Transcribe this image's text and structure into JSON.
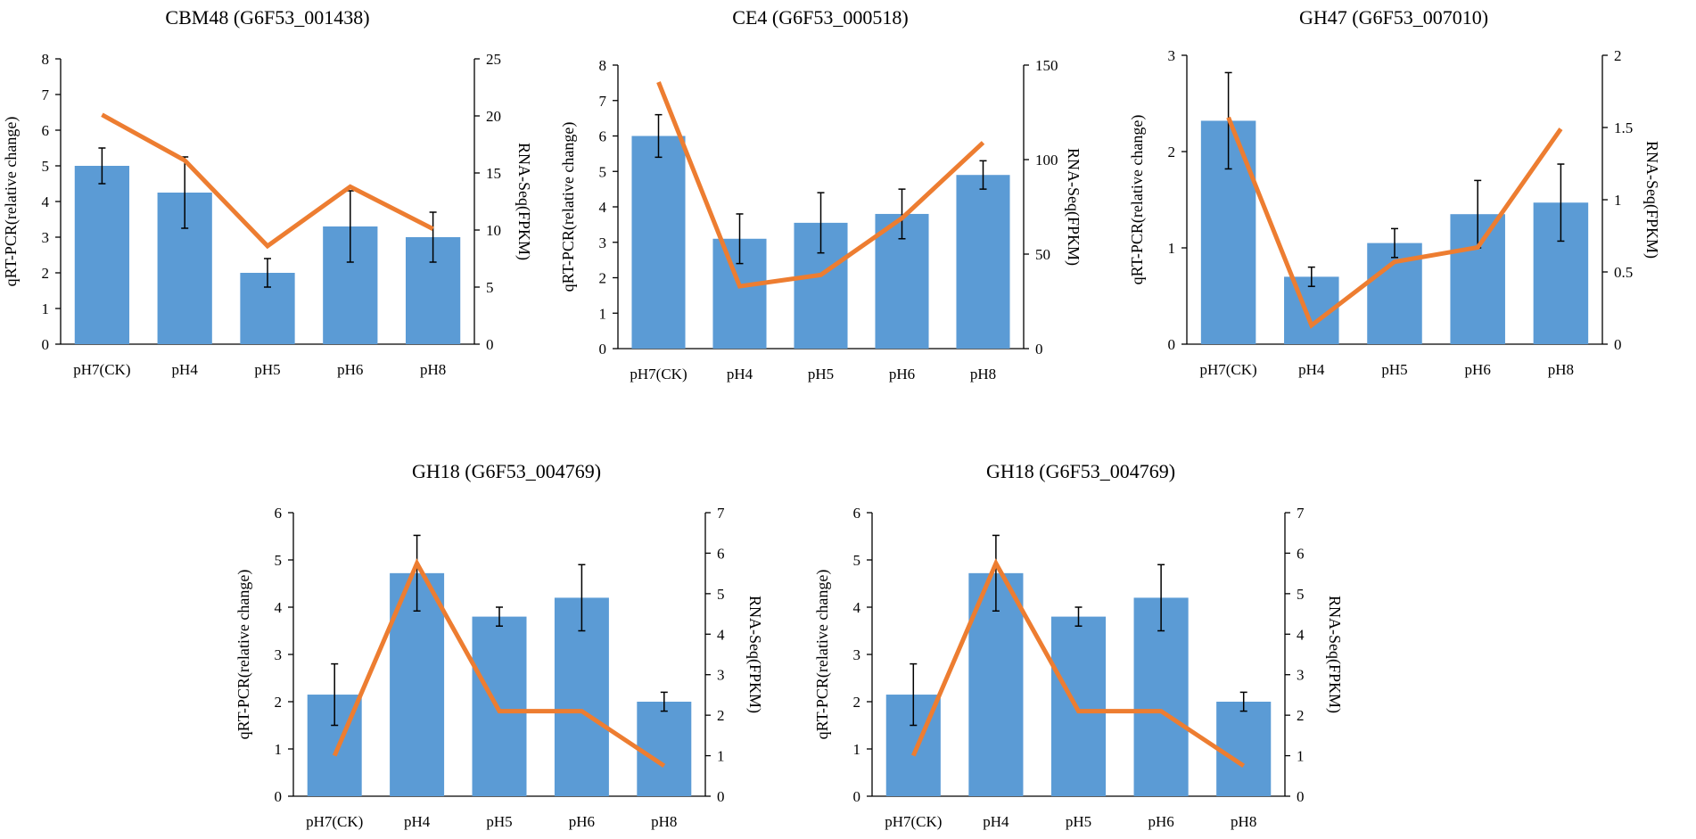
{
  "colors": {
    "bar": "#5b9bd5",
    "line": "#ed7d31",
    "axis": "#000000"
  },
  "chart_data": [
    {
      "type": "bar+line",
      "title": "CBM48 (G6F53_001438)",
      "categories": [
        "pH7(CK)",
        "pH4",
        "pH5",
        "pH6",
        "pH8"
      ],
      "ylabel": "qRT-PCR(relative change)",
      "y2label": "RNA-Seq(FPKM)",
      "ylim": [
        0,
        8
      ],
      "yticks": [
        0,
        1,
        2,
        3,
        4,
        5,
        6,
        7,
        8
      ],
      "y2lim": [
        0,
        25
      ],
      "y2ticks": [
        0,
        5,
        10,
        15,
        20,
        25
      ],
      "series": [
        {
          "name": "qRT-PCR",
          "axis": "left",
          "kind": "bar",
          "values": [
            5.0,
            4.25,
            2.0,
            3.3,
            3.0
          ],
          "errors": [
            0.5,
            1.0,
            0.4,
            1.0,
            0.7
          ]
        },
        {
          "name": "RNA-Seq",
          "axis": "right",
          "kind": "line",
          "values": [
            20.1,
            16.1,
            8.6,
            13.8,
            10.1
          ]
        }
      ]
    },
    {
      "type": "bar+line",
      "title": "CE4 (G6F53_000518)",
      "categories": [
        "pH7(CK)",
        "pH4",
        "pH5",
        "pH6",
        "pH8"
      ],
      "ylabel": "qRT-PCR(relative change)",
      "y2label": "RNA-Seq(FPKM)",
      "ylim": [
        0,
        8
      ],
      "yticks": [
        0,
        1,
        2,
        3,
        4,
        5,
        6,
        7,
        8
      ],
      "y2lim": [
        0,
        150
      ],
      "y2ticks": [
        0,
        50,
        100,
        150
      ],
      "series": [
        {
          "name": "qRT-PCR",
          "axis": "left",
          "kind": "bar",
          "values": [
            6.0,
            3.1,
            3.55,
            3.8,
            4.9
          ],
          "errors": [
            0.6,
            0.7,
            0.85,
            0.7,
            0.4
          ]
        },
        {
          "name": "RNA-Seq",
          "axis": "right",
          "kind": "line",
          "values": [
            141,
            33,
            39,
            69,
            109
          ]
        }
      ]
    },
    {
      "type": "bar+line",
      "title": "GH47 (G6F53_007010)",
      "categories": [
        "pH7(CK)",
        "pH4",
        "pH5",
        "pH6",
        "pH8"
      ],
      "ylabel": "qRT-PCR(relative change)",
      "y2label": "RNA-Seq(FPKM)",
      "ylim": [
        0,
        3
      ],
      "yticks": [
        0,
        1,
        2,
        3
      ],
      "y2lim": [
        0,
        2
      ],
      "y2ticks": [
        0,
        0.5,
        1,
        1.5,
        2
      ],
      "y2ticklabels": [
        "0",
        "0.5",
        "1",
        "1.5",
        "2"
      ],
      "series": [
        {
          "name": "qRT-PCR",
          "axis": "left",
          "kind": "bar",
          "values": [
            2.32,
            0.7,
            1.05,
            1.35,
            1.47
          ],
          "errors": [
            0.5,
            0.1,
            0.15,
            0.35,
            0.4
          ]
        },
        {
          "name": "RNA-Seq",
          "axis": "right",
          "kind": "line",
          "values": [
            1.57,
            0.13,
            0.57,
            0.67,
            1.49
          ]
        }
      ]
    },
    {
      "type": "bar+line",
      "title": "GH18 (G6F53_004769)",
      "categories": [
        "pH7(CK)",
        "pH4",
        "pH5",
        "pH6",
        "pH8"
      ],
      "ylabel": "qRT-PCR(relative change)",
      "y2label": "RNA-Seq(FPKM)",
      "ylim": [
        0,
        6
      ],
      "yticks": [
        0,
        1,
        2,
        3,
        4,
        5,
        6
      ],
      "y2lim": [
        0,
        7
      ],
      "y2ticks": [
        0,
        1,
        2,
        3,
        4,
        5,
        6,
        7
      ],
      "series": [
        {
          "name": "qRT-PCR",
          "axis": "left",
          "kind": "bar",
          "values": [
            2.15,
            4.72,
            3.8,
            4.2,
            2.0
          ],
          "errors": [
            0.65,
            0.8,
            0.2,
            0.7,
            0.2
          ]
        },
        {
          "name": "RNA-Seq",
          "axis": "right",
          "kind": "line",
          "values": [
            1.0,
            5.75,
            2.1,
            2.1,
            0.75
          ]
        }
      ]
    },
    {
      "type": "bar+line",
      "title": "GH18 (G6F53_004769)",
      "categories": [
        "pH7(CK)",
        "pH4",
        "pH5",
        "pH6",
        "pH8"
      ],
      "ylabel": "qRT-PCR(relative change)",
      "y2label": "RNA-Seq(FPKM)",
      "ylim": [
        0,
        6
      ],
      "yticks": [
        0,
        1,
        2,
        3,
        4,
        5,
        6
      ],
      "y2lim": [
        0,
        7
      ],
      "y2ticks": [
        0,
        1,
        2,
        3,
        4,
        5,
        6,
        7
      ],
      "series": [
        {
          "name": "qRT-PCR",
          "axis": "left",
          "kind": "bar",
          "values": [
            2.15,
            4.72,
            3.8,
            4.2,
            2.0
          ],
          "errors": [
            0.65,
            0.8,
            0.2,
            0.7,
            0.2
          ]
        },
        {
          "name": "RNA-Seq",
          "axis": "right",
          "kind": "line",
          "values": [
            1.0,
            5.75,
            2.1,
            2.1,
            0.75
          ]
        }
      ]
    }
  ]
}
